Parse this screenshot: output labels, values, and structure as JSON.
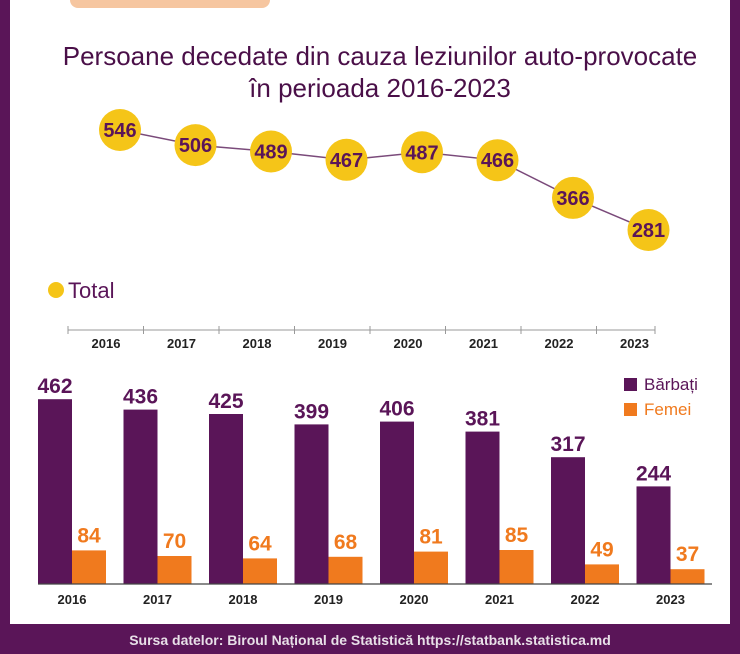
{
  "title_line1": "Persoane decedate din cauza leziunilor auto-provocate",
  "title_line2": "în perioada 2016-2023",
  "footer": "Sursa datelor: Biroul Național de Statistică https://statbank.statistica.md",
  "colors": {
    "frame": "#5a1558",
    "title": "#4a0f48",
    "total_circle": "#f5c518",
    "total_text": "#5a1558",
    "line": "#7a4a7a",
    "barbati": "#5a1558",
    "femei": "#f07a1e"
  },
  "chart_data": [
    {
      "type": "line",
      "categories": [
        "2016",
        "2017",
        "2018",
        "2019",
        "2020",
        "2021",
        "2022",
        "2023"
      ],
      "series": [
        {
          "name": "Total",
          "values": [
            546,
            506,
            489,
            467,
            487,
            466,
            366,
            281
          ]
        }
      ],
      "legend": "bottom-left"
    },
    {
      "type": "bar",
      "categories": [
        "2016",
        "2017",
        "2018",
        "2019",
        "2020",
        "2021",
        "2022",
        "2023"
      ],
      "series": [
        {
          "name": "Bărbați",
          "values": [
            462,
            436,
            425,
            399,
            406,
            381,
            317,
            244
          ]
        },
        {
          "name": "Femei",
          "values": [
            84,
            70,
            64,
            68,
            81,
            85,
            49,
            37
          ]
        }
      ],
      "legend": "top-right"
    }
  ]
}
